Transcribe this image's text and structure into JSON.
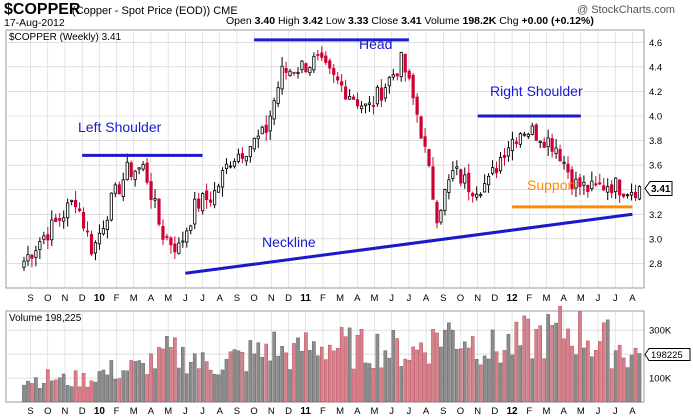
{
  "header": {
    "symbol": "$COPPER",
    "name": "(Copper - Spot Price (EOD))",
    "exchange": "CME",
    "date": "17-Aug-2012",
    "watermark": "@ StockCharts.com",
    "ohlc": {
      "open_label": "Open",
      "open": "3.40",
      "high_label": "High",
      "high": "3.42",
      "low_label": "Low",
      "low": "3.33",
      "close_label": "Close",
      "close": "3.41",
      "volume_label": "Volume",
      "volume": "198.2K",
      "chg_label": "Chg",
      "chg": "+0.00 (+0.12%)"
    },
    "legend_price": "$COPPER (Weekly) 3.41",
    "legend_volume": "Volume 198,225"
  },
  "colors": {
    "up": "#000000",
    "down": "#cc0033",
    "annotation": "#1a1acc",
    "support": "#ff8c00",
    "vol_up": "#8c8c8c",
    "vol_down": "#d9808a",
    "grid": "#cccccc"
  },
  "annotations": {
    "left_shoulder": "Left Shoulder",
    "head": "Head",
    "right_shoulder": "Right Shoulder",
    "support": "Support",
    "neckline": "Neckline"
  },
  "chart_data": [
    {
      "type": "candlestick",
      "title": "$COPPER (Weekly) 3.41",
      "x_range": [
        "2009-09",
        "2012-08"
      ],
      "ylim": [
        2.6,
        4.7
      ],
      "y_ticks": [
        2.8,
        3.0,
        3.2,
        3.4,
        3.6,
        3.8,
        4.0,
        4.2,
        4.4,
        4.6
      ],
      "last_value": 3.41,
      "grid": true,
      "x_tick_labels": [
        "S",
        "O",
        "N",
        "D",
        "10",
        "F",
        "M",
        "A",
        "M",
        "J",
        "J",
        "A",
        "S",
        "O",
        "N",
        "D",
        "11",
        "F",
        "M",
        "A",
        "M",
        "J",
        "J",
        "A",
        "S",
        "O",
        "N",
        "D",
        "12",
        "F",
        "M",
        "A",
        "M",
        "J",
        "J",
        "A"
      ],
      "monthly_closes": [
        {
          "month": "2009-09",
          "close": 2.82
        },
        {
          "month": "2009-10",
          "close": 3.0
        },
        {
          "month": "2009-11",
          "close": 3.15
        },
        {
          "month": "2009-12",
          "close": 3.33
        },
        {
          "month": "2010-01",
          "close": 2.9
        },
        {
          "month": "2010-02",
          "close": 3.28
        },
        {
          "month": "2010-03",
          "close": 3.55
        },
        {
          "month": "2010-04",
          "close": 3.58
        },
        {
          "month": "2010-05",
          "close": 3.05
        },
        {
          "month": "2010-06",
          "close": 2.92
        },
        {
          "month": "2010-07",
          "close": 3.28
        },
        {
          "month": "2010-08",
          "close": 3.35
        },
        {
          "month": "2010-09",
          "close": 3.65
        },
        {
          "month": "2010-10",
          "close": 3.75
        },
        {
          "month": "2010-11",
          "close": 3.85
        },
        {
          "month": "2010-12",
          "close": 4.35
        },
        {
          "month": "2011-01",
          "close": 4.4
        },
        {
          "month": "2011-02",
          "close": 4.45
        },
        {
          "month": "2011-03",
          "close": 4.3
        },
        {
          "month": "2011-04",
          "close": 4.18
        },
        {
          "month": "2011-05",
          "close": 4.05
        },
        {
          "month": "2011-06",
          "close": 4.25
        },
        {
          "month": "2011-07",
          "close": 4.45
        },
        {
          "month": "2011-08",
          "close": 3.95
        },
        {
          "month": "2011-09",
          "close": 3.2
        },
        {
          "month": "2011-10",
          "close": 3.55
        },
        {
          "month": "2011-11",
          "close": 3.42
        },
        {
          "month": "2011-12",
          "close": 3.45
        },
        {
          "month": "2012-01",
          "close": 3.75
        },
        {
          "month": "2012-02",
          "close": 3.9
        },
        {
          "month": "2012-03",
          "close": 3.85
        },
        {
          "month": "2012-04",
          "close": 3.75
        },
        {
          "month": "2012-05",
          "close": 3.45
        },
        {
          "month": "2012-06",
          "close": 3.4
        },
        {
          "month": "2012-07",
          "close": 3.45
        },
        {
          "month": "2012-08",
          "close": 3.41
        }
      ],
      "trendlines": [
        {
          "label": "Neckline",
          "from": {
            "date": "2010-06",
            "value": 2.72
          },
          "to": {
            "date": "2012-08",
            "value": 3.2
          }
        },
        {
          "label": "Support",
          "from": {
            "date": "2012-01",
            "value": 3.26
          },
          "to": {
            "date": "2012-08",
            "value": 3.26
          }
        },
        {
          "label": "Left Shoulder",
          "from": {
            "date": "2009-12",
            "value": 3.68
          },
          "to": {
            "date": "2010-07",
            "value": 3.68
          }
        },
        {
          "label": "Head",
          "from": {
            "date": "2010-10",
            "value": 4.62
          },
          "to": {
            "date": "2011-07",
            "value": 4.62
          }
        },
        {
          "label": "Right Shoulder",
          "from": {
            "date": "2011-11",
            "value": 4.0
          },
          "to": {
            "date": "2012-05",
            "value": 4.0
          }
        }
      ]
    },
    {
      "type": "bar",
      "title": "Volume 198,225",
      "ylim": [
        0,
        380000
      ],
      "y_ticks": [
        {
          "label": "100K",
          "value": 100000
        },
        {
          "label": "200K",
          "value": 200000
        },
        {
          "label": "300K",
          "value": 300000
        }
      ],
      "last_value": "198225",
      "monthly_avg_volume": [
        {
          "month": "2009-09",
          "volume": 95000
        },
        {
          "month": "2009-10",
          "volume": 100000
        },
        {
          "month": "2009-11",
          "volume": 90000
        },
        {
          "month": "2009-12",
          "volume": 95000
        },
        {
          "month": "2010-01",
          "volume": 120000
        },
        {
          "month": "2010-02",
          "volume": 130000
        },
        {
          "month": "2010-03",
          "volume": 140000
        },
        {
          "month": "2010-04",
          "volume": 170000
        },
        {
          "month": "2010-05",
          "volume": 200000
        },
        {
          "month": "2010-06",
          "volume": 190000
        },
        {
          "month": "2010-07",
          "volume": 160000
        },
        {
          "month": "2010-08",
          "volume": 160000
        },
        {
          "month": "2010-09",
          "volume": 180000
        },
        {
          "month": "2010-10",
          "volume": 200000
        },
        {
          "month": "2010-11",
          "volume": 230000
        },
        {
          "month": "2010-12",
          "volume": 200000
        },
        {
          "month": "2011-01",
          "volume": 230000
        },
        {
          "month": "2011-02",
          "volume": 240000
        },
        {
          "month": "2011-03",
          "volume": 230000
        },
        {
          "month": "2011-04",
          "volume": 220000
        },
        {
          "month": "2011-05",
          "volume": 230000
        },
        {
          "month": "2011-06",
          "volume": 220000
        },
        {
          "month": "2011-07",
          "volume": 210000
        },
        {
          "month": "2011-08",
          "volume": 250000
        },
        {
          "month": "2011-09",
          "volume": 290000
        },
        {
          "month": "2011-10",
          "volume": 280000
        },
        {
          "month": "2011-11",
          "volume": 250000
        },
        {
          "month": "2011-12",
          "volume": 220000
        },
        {
          "month": "2012-01",
          "volume": 240000
        },
        {
          "month": "2012-02",
          "volume": 260000
        },
        {
          "month": "2012-03",
          "volume": 280000
        },
        {
          "month": "2012-04",
          "volume": 300000
        },
        {
          "month": "2012-05",
          "volume": 290000
        },
        {
          "month": "2012-06",
          "volume": 250000
        },
        {
          "month": "2012-07",
          "volume": 230000
        },
        {
          "month": "2012-08",
          "volume": 200000
        }
      ]
    }
  ]
}
